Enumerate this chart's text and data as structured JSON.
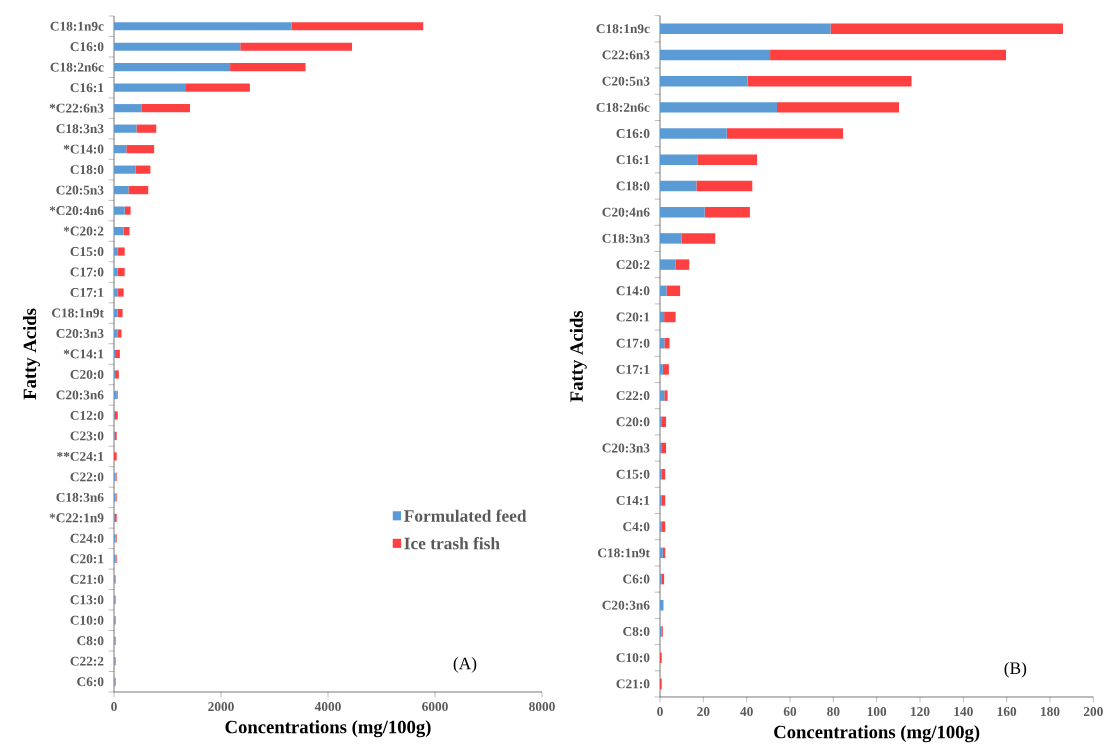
{
  "chart_data": [
    {
      "type": "bar",
      "orientation": "horizontal",
      "stacked": true,
      "xlabel": "Concentrations (mg/100g)",
      "ylabel": "Fatty Acids",
      "categories": [
        "C18:1n9c",
        "C16:0",
        "C18:2n6c",
        "C16:1",
        "*C22:6n3",
        "C18:3n3",
        "*C14:0",
        "C18:0",
        "C20:5n3",
        "*C20:4n6",
        "*C20:2",
        "C15:0",
        "C17:0",
        "C17:1",
        "C18:1n9t",
        "C20:3n3",
        "*C14:1",
        "C20:0",
        "C20:3n6",
        "C12:0",
        "C23:0",
        "**C24:1",
        "C22:0",
        "C18:3n6",
        "*C22:1n9",
        "C24:0",
        "C20:1",
        "C21:0",
        "C13:0",
        "C10:0",
        "C8:0",
        "C22:2",
        "C6:0"
      ],
      "series": [
        {
          "name": "Formulated feed",
          "color": "#5b9bd5",
          "values": [
            3320,
            2360,
            2170,
            1330,
            510,
            420,
            230,
            400,
            270,
            200,
            180,
            70,
            70,
            70,
            70,
            70,
            20,
            20,
            50,
            10,
            10,
            null,
            30,
            30,
            10,
            30,
            30,
            10,
            10,
            10,
            10,
            10,
            10
          ]
        },
        {
          "name": "Ice trash fish",
          "color": "#ff4040",
          "values": [
            2460,
            2090,
            1410,
            1210,
            910,
            370,
            520,
            280,
            370,
            110,
            110,
            130,
            130,
            110,
            90,
            70,
            90,
            70,
            20,
            60,
            40,
            50,
            20,
            20,
            40,
            20,
            20,
            20,
            20,
            20,
            20,
            20,
            20
          ]
        }
      ],
      "xlim": [
        0,
        8000
      ],
      "xticks": [
        0,
        2000,
        4000,
        6000,
        8000
      ],
      "legend": "bottom right",
      "annotations": [
        "(A)"
      ]
    },
    {
      "type": "bar",
      "orientation": "horizontal",
      "stacked": true,
      "xlabel": "Concentrations (mg/100g)",
      "ylabel": "Fatty Acids",
      "categories": [
        "C18:1n9c",
        "C22:6n3",
        "C20:5n3",
        "C18:2n6c",
        "C16:0",
        "C16:1",
        "C18:0",
        "C20:4n6",
        "C18:3n3",
        "C20:2",
        "C14:0",
        "C20:1",
        "C17:0",
        "C17:1",
        "C22:0",
        "C20:0",
        "C20:3n3",
        "C15:0",
        "C14:1",
        "C4:0",
        "C18:1n9t",
        "C6:0",
        "C20:3n6",
        "C8:0",
        "C10:0",
        "C21:0"
      ],
      "series": [
        {
          "color": "#5b9bd5",
          "values": [
            78.7,
            50.8,
            40.4,
            54.0,
            30.8,
            17.5,
            16.8,
            20.6,
            9.9,
            7.1,
            3.0,
            1.9,
            2.0,
            1.3,
            2.0,
            0.9,
            0.9,
            0.6,
            0.6,
            0.6,
            1.3,
            0.6,
            1.6,
            0.6,
            null,
            null
          ]
        },
        {
          "color": "#ff4040",
          "values": [
            107.3,
            108.9,
            75.7,
            56.3,
            53.7,
            27.3,
            25.8,
            20.9,
            15.6,
            6.4,
            6.3,
            5.3,
            2.4,
            2.8,
            1.5,
            1.9,
            1.9,
            1.8,
            1.8,
            1.8,
            1.1,
            1.3,
            null,
            0.7,
            0.8,
            0.8
          ]
        }
      ],
      "xlim": [
        0,
        200
      ],
      "xticks": [
        0,
        20,
        40,
        60,
        80,
        100,
        120,
        140,
        160,
        180,
        200
      ],
      "annotations": [
        "(B)"
      ]
    }
  ]
}
